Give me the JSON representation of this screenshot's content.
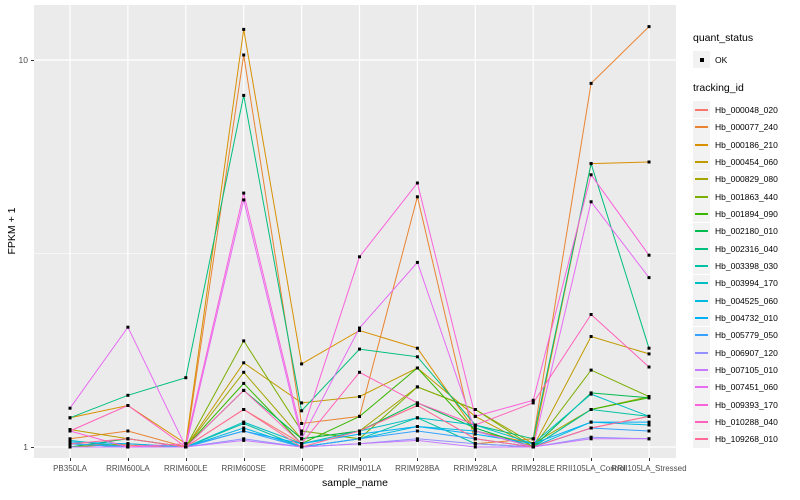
{
  "legend": {
    "quant_status_title": "quant_status",
    "quant_status_items": [
      {
        "label": "OK",
        "marker": "black-point"
      }
    ],
    "tracking_id_title": "tracking_id"
  },
  "chart_data": {
    "type": "line",
    "title": "",
    "xlabel": "sample_name",
    "ylabel": "FPKM + 1",
    "yscale": "log10",
    "ylim": [
      0.94,
      13.9
    ],
    "grid": "on",
    "legend_position": "right",
    "point_color": "#000000",
    "panel_background": "#EBEBEB",
    "gridline_color": "#FFFFFF",
    "y_ticks": [
      {
        "label": "1",
        "value": 1
      },
      {
        "label": "10",
        "value": 10
      }
    ],
    "y_minor": [
      3.162
    ],
    "categories": [
      "PB350LA",
      "RRIM600LA",
      "RRIM600LE",
      "RRIM600SE",
      "RRIM600PE",
      "RRIM901LA",
      "RRIM928BA",
      "RRIM928LA",
      "RRIM928LE",
      "RRII105LA_Control",
      "RRII105LA_Stressed"
    ],
    "series": [
      {
        "name": "Hb_000048_020",
        "color": "#F8766D",
        "values": [
          1.02,
          1.01,
          1.0,
          1.25,
          1.02,
          1.1,
          1.28,
          1.05,
          1.0,
          1.12,
          1.2
        ]
      },
      {
        "name": "Hb_000077_240",
        "color": "#EA8331",
        "values": [
          1.05,
          1.1,
          1.0,
          10.3,
          1.15,
          1.2,
          4.43,
          1.02,
          1.05,
          8.7,
          12.2
        ]
      },
      {
        "name": "Hb_000186_210",
        "color": "#D89000",
        "values": [
          1.19,
          1.28,
          1.02,
          12.0,
          1.64,
          2.0,
          1.8,
          1.1,
          1.02,
          5.4,
          5.45
        ]
      },
      {
        "name": "Hb_000454_060",
        "color": "#C09B00",
        "values": [
          1.11,
          1.05,
          1.0,
          1.65,
          1.3,
          1.35,
          1.6,
          1.2,
          1.0,
          1.93,
          1.74
        ]
      },
      {
        "name": "Hb_000829_080",
        "color": "#A3A500",
        "values": [
          1.0,
          1.02,
          1.0,
          1.56,
          1.05,
          1.1,
          1.43,
          1.25,
          1.02,
          1.25,
          1.35
        ]
      },
      {
        "name": "Hb_001863_440",
        "color": "#7CAE00",
        "values": [
          1.0,
          1.0,
          1.0,
          1.88,
          1.1,
          1.05,
          1.43,
          1.25,
          1.0,
          1.58,
          1.35
        ]
      },
      {
        "name": "Hb_001894_090",
        "color": "#39B600",
        "values": [
          1.02,
          1.0,
          1.0,
          1.46,
          1.02,
          1.2,
          1.6,
          1.1,
          1.0,
          1.25,
          1.34
        ]
      },
      {
        "name": "Hb_002180_010",
        "color": "#00BB4E",
        "values": [
          1.0,
          1.05,
          1.0,
          1.4,
          1.05,
          1.1,
          1.3,
          1.12,
          1.0,
          1.38,
          1.34
        ]
      },
      {
        "name": "Hb_002316_040",
        "color": "#00BF7D",
        "values": [
          1.19,
          1.36,
          1.51,
          8.1,
          1.24,
          1.79,
          1.71,
          1.14,
          1.05,
          5.4,
          1.8
        ]
      },
      {
        "name": "Hb_003398_030",
        "color": "#00C1A3",
        "values": [
          1.0,
          1.0,
          1.0,
          1.15,
          1.0,
          1.05,
          1.19,
          1.02,
          1.0,
          1.25,
          1.2
        ]
      },
      {
        "name": "Hb_003994_170",
        "color": "#00BFC4",
        "values": [
          1.04,
          1.0,
          1.0,
          1.16,
          1.02,
          1.1,
          1.19,
          1.14,
          1.02,
          1.37,
          1.2
        ]
      },
      {
        "name": "Hb_004525_060",
        "color": "#00BAE0",
        "values": [
          1.02,
          1.0,
          1.0,
          1.12,
          1.0,
          1.05,
          1.13,
          1.1,
          1.0,
          1.16,
          1.14
        ]
      },
      {
        "name": "Hb_004732_010",
        "color": "#00B0F6",
        "values": [
          1.03,
          1.02,
          1.0,
          1.1,
          1.02,
          1.08,
          1.13,
          1.08,
          1.02,
          1.16,
          1.16
        ]
      },
      {
        "name": "Hb_005779_050",
        "color": "#35A2FF",
        "values": [
          1.02,
          1.0,
          1.0,
          1.1,
          1.0,
          1.05,
          1.1,
          1.05,
          1.0,
          1.12,
          1.1
        ]
      },
      {
        "name": "Hb_006907_120",
        "color": "#9590FF",
        "values": [
          1.0,
          1.0,
          1.0,
          1.05,
          1.0,
          1.02,
          1.05,
          1.02,
          1.0,
          1.06,
          1.05
        ]
      },
      {
        "name": "Hb_007105_010",
        "color": "#C77CFF",
        "values": [
          1.0,
          1.0,
          1.0,
          1.04,
          1.0,
          1.02,
          1.04,
          1.0,
          1.0,
          1.05,
          1.05
        ]
      },
      {
        "name": "Hb_007451_060",
        "color": "#E76BF3",
        "values": [
          1.26,
          2.04,
          1.0,
          4.35,
          1.05,
          2.03,
          3.0,
          1.1,
          1.0,
          4.3,
          2.74
        ]
      },
      {
        "name": "Hb_009393_170",
        "color": "#FA62DB",
        "values": [
          1.1,
          1.0,
          1.02,
          4.53,
          1.08,
          3.1,
          4.81,
          1.2,
          1.32,
          5.05,
          3.13
        ]
      },
      {
        "name": "Hb_010288_040",
        "color": "#FF62BC",
        "values": [
          1.1,
          1.28,
          1.0,
          1.4,
          1.02,
          1.56,
          1.3,
          1.14,
          1.3,
          2.2,
          1.61
        ]
      },
      {
        "name": "Hb_109268_010",
        "color": "#FF6A98",
        "values": [
          1.02,
          1.05,
          1.0,
          1.25,
          1.0,
          1.1,
          1.28,
          1.05,
          1.0,
          1.12,
          1.2
        ]
      }
    ]
  }
}
